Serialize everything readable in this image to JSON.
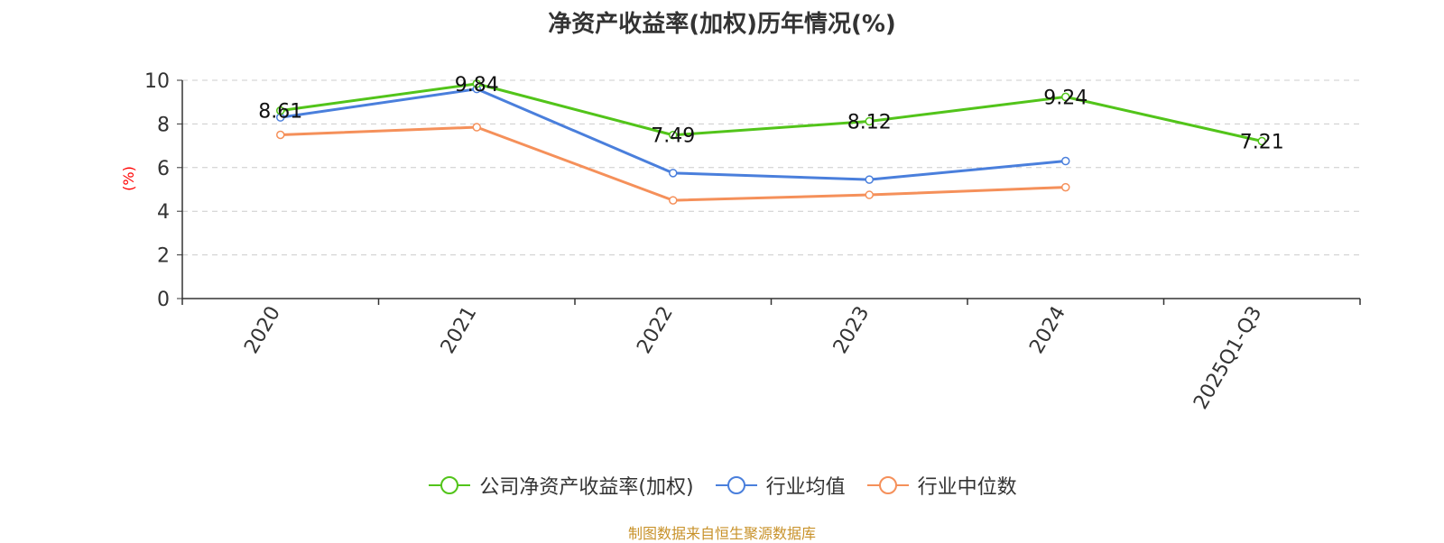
{
  "chart_data": {
    "type": "line",
    "title": "净资产收益率(加权)历年情况(%)",
    "ylabel": "(%)",
    "xlabel": "",
    "categories": [
      "2020",
      "2021",
      "2022",
      "2023",
      "2024",
      "2025Q1-Q3"
    ],
    "ylim": [
      0,
      10
    ],
    "yticks": [
      0,
      2,
      4,
      6,
      8,
      10
    ],
    "grid": true,
    "legend_position": "bottom-center",
    "series": [
      {
        "name": "公司净资产收益率(加权)",
        "color": "#52c41a",
        "values": [
          8.61,
          9.84,
          7.49,
          8.12,
          9.24,
          7.21
        ],
        "labels": [
          "8.61",
          "9.84",
          "7.49",
          "8.12",
          "9.24",
          "7.21"
        ]
      },
      {
        "name": "行业均值",
        "color": "#4a7fdc",
        "values": [
          8.3,
          9.6,
          5.75,
          5.45,
          6.3,
          null
        ]
      },
      {
        "name": "行业中位数",
        "color": "#f5905a",
        "values": [
          7.5,
          7.85,
          4.5,
          4.75,
          5.1,
          null
        ]
      }
    ],
    "source": "制图数据来自恒生聚源数据库",
    "ylabel_color": "#ff0000",
    "source_color": "#c8922a"
  }
}
